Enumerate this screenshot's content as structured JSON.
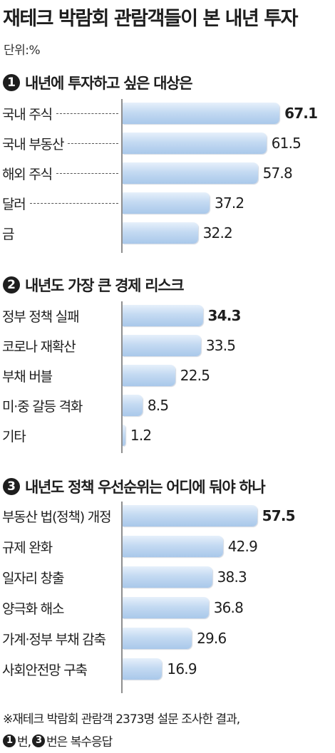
{
  "title": "재테크 박람회 관람객들이 본 내년 투자",
  "unit": "단위:%",
  "footnote": {
    "line1": "※재테크 박람회 관람객 2373명 설문 조사한 결과,",
    "num1": "1",
    "text1": "번,",
    "num2": "3",
    "text2": "번은 복수응답"
  },
  "chart_data": [
    {
      "type": "bar",
      "section_number": "1",
      "title": "내년에 투자하고 싶은 대상은",
      "categories": [
        "국내 주식",
        "국내 부동산",
        "해외 주식",
        "달러",
        "금"
      ],
      "values": [
        67.1,
        61.5,
        57.8,
        37.2,
        32.2
      ],
      "value_labels": [
        "67.1",
        "61.5",
        "57.8",
        "37.2",
        "32.2"
      ],
      "highlight": [
        true,
        false,
        false,
        false,
        false
      ],
      "leaders": [
        true,
        true,
        true,
        true,
        false
      ]
    },
    {
      "type": "bar",
      "section_number": "2",
      "title": "내년도 가장 큰 경제 리스크",
      "categories": [
        "정부 정책 실패",
        "코로나 재확산",
        "부채 버블",
        "미·중 갈등 격화",
        "기타"
      ],
      "values": [
        34.3,
        33.5,
        22.5,
        8.5,
        1.2
      ],
      "value_labels": [
        "34.3",
        "33.5",
        "22.5",
        "8.5",
        "1.2"
      ],
      "highlight": [
        true,
        false,
        false,
        false,
        false
      ],
      "leaders": [
        false,
        false,
        false,
        false,
        false
      ]
    },
    {
      "type": "bar",
      "section_number": "3",
      "title": "내년도 정책 우선순위는 어디에 둬야 하나",
      "categories": [
        "부동산 법(정책) 개정",
        "규제 완화",
        "일자리 창출",
        "양극화 해소",
        "가계·정부 부채 감축",
        "사회안전망 구축"
      ],
      "values": [
        57.5,
        42.9,
        38.3,
        36.8,
        29.6,
        16.9
      ],
      "value_labels": [
        "57.5",
        "42.9",
        "38.3",
        "36.8",
        "29.6",
        "16.9"
      ],
      "highlight": [
        true,
        false,
        false,
        false,
        false,
        false
      ],
      "leaders": [
        false,
        false,
        false,
        false,
        false,
        false
      ]
    }
  ]
}
